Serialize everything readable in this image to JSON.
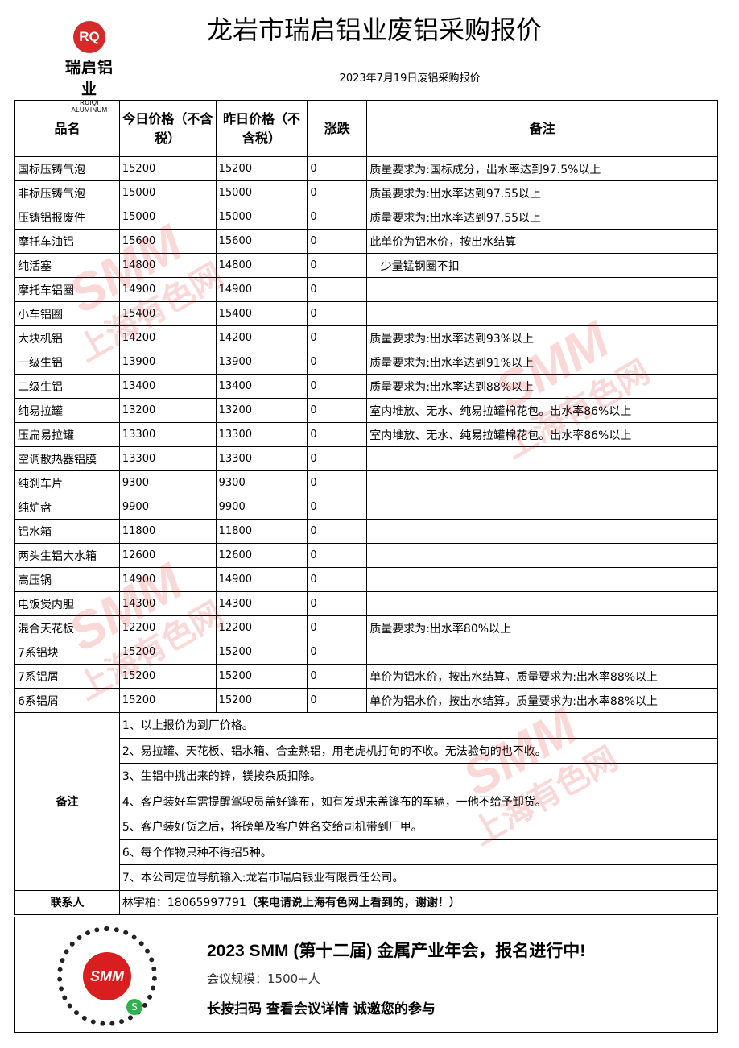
{
  "logo": {
    "mark": "RQ",
    "cn": "瑞启铝业",
    "en": "RUIQI ALUMINUM"
  },
  "title": "龙岩市瑞启铝业废铝采购报价",
  "subtitle": "2023年7月19日废铝采购报价",
  "headers": [
    "品名",
    "今日价格（不含税）",
    "昨日价格（不含税）",
    "涨跌",
    "备注"
  ],
  "rows": [
    [
      "国标压铸气泡",
      "15200",
      "15200",
      "0",
      "质量要求为:国标成分，出水率达到97.5%以上"
    ],
    [
      "非标压铸气泡",
      "15000",
      "15000",
      "0",
      "质虽要求为:出水率达到97.55以上"
    ],
    [
      "压铸铝报废件",
      "15000",
      "15000",
      "0",
      "质量要求为:出水率达到97.55以上"
    ],
    [
      "摩托车油铝",
      "15600",
      "15600",
      "0",
      "此单价为铝水价，按出水结算"
    ],
    [
      "纯活塞",
      "14800",
      "14800",
      "0",
      "   少量锰钢圈不扣"
    ],
    [
      "摩托车铝圈",
      "14900",
      "14900",
      "0",
      ""
    ],
    [
      "小车铝圈",
      "15400",
      "15400",
      "0",
      ""
    ],
    [
      "大块机铝",
      "14200",
      "14200",
      "0",
      "质量要求为:出水率达到93%以上"
    ],
    [
      "一级生铝",
      "13900",
      "13900",
      "0",
      "质量要求为:出水率达到91%以上"
    ],
    [
      "二级生铝",
      "13400",
      "13400",
      "0",
      "质量要求为:出水率达到88%以上"
    ],
    [
      "纯易拉罐",
      "13200",
      "13200",
      "0",
      "室内堆放、无水、纯易拉罐棉花包。出水率86%以上"
    ],
    [
      "压扁易拉罐",
      "13300",
      "13300",
      "0",
      "室内堆放、无水、纯易拉罐棉花包。出水率86%以上"
    ],
    [
      "空调散热器铝膜",
      "13300",
      "13300",
      "0",
      ""
    ],
    [
      "纯刹车片",
      "9300",
      "9300",
      "0",
      ""
    ],
    [
      "纯炉盘",
      "9900",
      "9900",
      "0",
      ""
    ],
    [
      "铝水箱",
      "11800",
      "11800",
      "0",
      ""
    ],
    [
      "两头生铝大水箱",
      "12600",
      "12600",
      "0",
      ""
    ],
    [
      "高压锅",
      "14900",
      "14900",
      "0",
      ""
    ],
    [
      "电饭煲内胆",
      "14300",
      "14300",
      "0",
      ""
    ],
    [
      "混合天花板",
      "12200",
      "12200",
      "0",
      "质量要求为:出水率80%以上"
    ],
    [
      "7系铝块",
      "15200",
      "15200",
      "0",
      ""
    ],
    [
      "7系铝屑",
      "15200",
      "15200",
      "0",
      "单价为铝水价，按出水结算。质量要求为:出水率88%以上"
    ],
    [
      "6系铝屑",
      "15200",
      "15200",
      "0",
      "单价为铝水价，按出水结算。质量要求为:出水率88%以上"
    ]
  ],
  "notes_label": "备注",
  "notes": [
    "1、以上报价为到厂价格。",
    "2、易拉罐、天花板、铝水箱、合金熟铝，用老虎机打句的不收。无法验句的也不收。",
    "3、生铝中挑出来的锌，镁按杂质扣除。",
    "4、客户装好车需提醒驾驶员盖好篷布，如有发现未盖篷布的车辆，一他不给予卸货。",
    "5、客户装好货之后，将磅单及客户姓名交给司机带到厂甲。",
    "6、每个作物只种不得招5种。",
    "7、本公司定位导航输入:龙岩市瑞启银业有限责任公司。"
  ],
  "contact": {
    "label": "联系人",
    "value": "林宇柏：18065997791",
    "bold": "（来电请说上海有色网上看到的，谢谢！）"
  },
  "banner": {
    "qr_mark": "SMM",
    "line1": "2023 SMM (第十二届) 金属产业年会，报名进行中!",
    "line2": "会议规模：1500+人",
    "line3": "长按扫码  查看会议详情   诚邀您的参与"
  },
  "watermark": {
    "brand": "SMM",
    "cn": "上海有色网",
    "color": "#e62828"
  }
}
